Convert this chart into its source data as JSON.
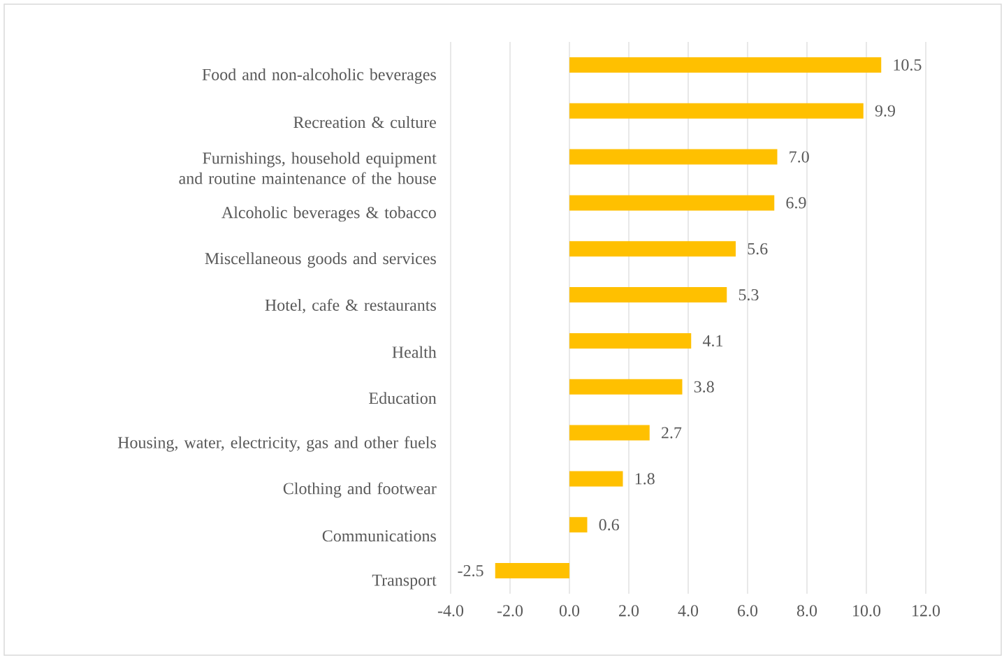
{
  "chart_data": {
    "type": "bar",
    "orientation": "horizontal",
    "categories": [
      "Food and non-alcoholic beverages",
      "Recreation & culture",
      "Furnishings, household equipment and routine maintenance of the house",
      "Alcoholic beverages & tobacco",
      "Miscellaneous goods and services",
      "Hotel, cafe & restaurants",
      "Health",
      "Education",
      "Housing, water, electricity, gas and other fuels",
      "Clothing and footwear",
      "Communications",
      "Transport"
    ],
    "values": [
      10.5,
      9.9,
      7.0,
      6.9,
      5.6,
      5.3,
      4.1,
      3.8,
      2.7,
      1.8,
      0.6,
      -2.5
    ],
    "color": "#ffc000",
    "xlim": [
      -4,
      12
    ],
    "xticks": [
      {
        "value": -4,
        "label": "-4.0"
      },
      {
        "value": -2,
        "label": "-2.0"
      },
      {
        "value": 0,
        "label": "0.0"
      },
      {
        "value": 2,
        "label": "2.0"
      },
      {
        "value": 4,
        "label": "4.0"
      },
      {
        "value": 6,
        "label": "6.0"
      },
      {
        "value": 8,
        "label": "8.0"
      },
      {
        "value": 10,
        "label": "10.0"
      },
      {
        "value": 12,
        "label": "12.0"
      }
    ],
    "value_labels": [
      "10.5",
      "9.9",
      "7.0",
      "6.9",
      "5.6",
      "5.3",
      "4.1",
      "3.8",
      "2.7",
      "1.8",
      "0.6",
      "-2.5"
    ],
    "grid": "x"
  }
}
